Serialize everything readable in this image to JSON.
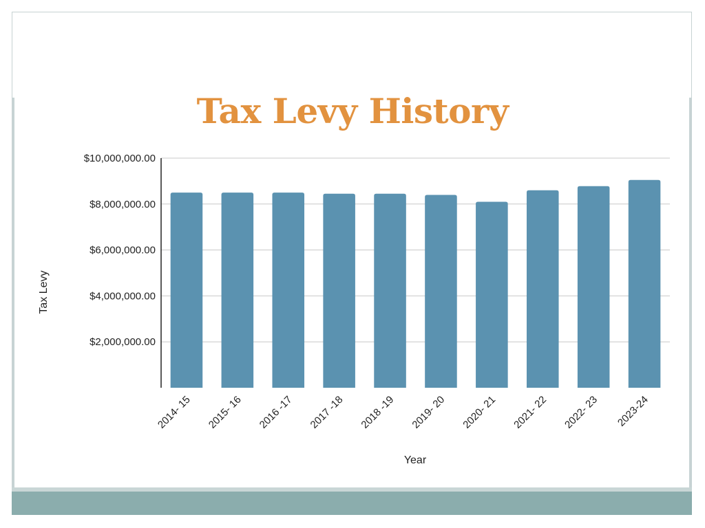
{
  "chart_data": {
    "type": "bar",
    "title": "Tax Levy History",
    "xlabel": "Year",
    "ylabel": "Tax Levy",
    "categories": [
      "2014- 15",
      "2015- 16",
      "2016 -17",
      "2017 -18",
      "2018 -19",
      "2019- 20",
      "2020- 21",
      "2021- 22",
      "2022- 23",
      "2023-24"
    ],
    "values": [
      8500000,
      8500000,
      8500000,
      8450000,
      8450000,
      8400000,
      8100000,
      8600000,
      8780000,
      9050000
    ],
    "ylim": [
      0,
      10000000
    ],
    "y_ticks": [
      {
        "value": 2000000,
        "label": "$2,000,000.00"
      },
      {
        "value": 4000000,
        "label": "$4,000,000.00"
      },
      {
        "value": 6000000,
        "label": "$6,000,000.00"
      },
      {
        "value": 8000000,
        "label": "$8,000,000.00"
      },
      {
        "value": 10000000,
        "label": "$10,000,000.00"
      }
    ],
    "grid": true,
    "legend": "none",
    "bar_color": "#5b92b0"
  },
  "theme": {
    "title_color": "#e2923f",
    "band_color": "#8badad"
  }
}
